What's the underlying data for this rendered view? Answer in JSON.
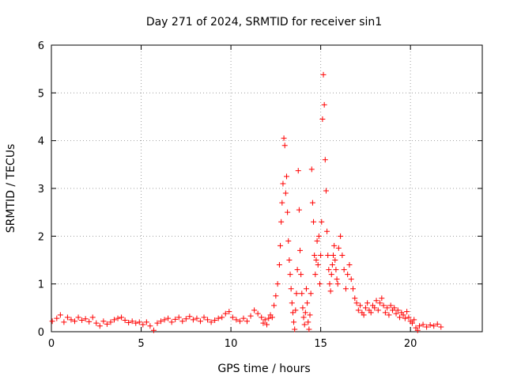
{
  "chart_data": {
    "type": "scatter",
    "title": "Day 271 of 2024, SRMTID for receiver sin1",
    "xlabel": "GPS time / hours",
    "ylabel": "SRMTID / TECUs",
    "xlim": [
      0,
      24
    ],
    "ylim": [
      0,
      6
    ],
    "xticks": [
      0,
      5,
      10,
      15,
      20
    ],
    "yticks": [
      0,
      1,
      2,
      3,
      4,
      5,
      6
    ],
    "xtick_labels": [
      "0",
      "5",
      "10",
      "15",
      "20"
    ],
    "ytick_labels": [
      "0",
      "1",
      "2",
      "3",
      "4",
      "5",
      "6"
    ],
    "grid": true,
    "marker": "+",
    "series": [
      {
        "name": "sin1",
        "color": "#ff0000",
        "points": [
          [
            0.05,
            0.22
          ],
          [
            0.3,
            0.28
          ],
          [
            0.5,
            0.35
          ],
          [
            0.7,
            0.2
          ],
          [
            0.9,
            0.3
          ],
          [
            1.1,
            0.25
          ],
          [
            1.3,
            0.22
          ],
          [
            1.5,
            0.3
          ],
          [
            1.7,
            0.24
          ],
          [
            1.9,
            0.27
          ],
          [
            2.1,
            0.21
          ],
          [
            2.3,
            0.3
          ],
          [
            2.5,
            0.18
          ],
          [
            2.7,
            0.12
          ],
          [
            2.9,
            0.22
          ],
          [
            3.1,
            0.16
          ],
          [
            3.3,
            0.2
          ],
          [
            3.5,
            0.25
          ],
          [
            3.7,
            0.28
          ],
          [
            3.9,
            0.3
          ],
          [
            4.1,
            0.24
          ],
          [
            4.3,
            0.19
          ],
          [
            4.5,
            0.22
          ],
          [
            4.7,
            0.18
          ],
          [
            4.9,
            0.2
          ],
          [
            5.1,
            0.15
          ],
          [
            5.3,
            0.2
          ],
          [
            5.5,
            0.12
          ],
          [
            5.7,
            0.03
          ],
          [
            5.9,
            0.18
          ],
          [
            6.1,
            0.22
          ],
          [
            6.3,
            0.25
          ],
          [
            6.5,
            0.28
          ],
          [
            6.7,
            0.2
          ],
          [
            6.9,
            0.26
          ],
          [
            7.1,
            0.3
          ],
          [
            7.3,
            0.22
          ],
          [
            7.5,
            0.27
          ],
          [
            7.7,
            0.32
          ],
          [
            7.9,
            0.25
          ],
          [
            8.1,
            0.28
          ],
          [
            8.3,
            0.22
          ],
          [
            8.5,
            0.3
          ],
          [
            8.7,
            0.25
          ],
          [
            8.9,
            0.2
          ],
          [
            9.1,
            0.24
          ],
          [
            9.3,
            0.28
          ],
          [
            9.5,
            0.3
          ],
          [
            9.7,
            0.38
          ],
          [
            9.9,
            0.42
          ],
          [
            10.1,
            0.3
          ],
          [
            10.3,
            0.25
          ],
          [
            10.5,
            0.22
          ],
          [
            10.7,
            0.28
          ],
          [
            10.9,
            0.22
          ],
          [
            11.1,
            0.33
          ],
          [
            11.3,
            0.45
          ],
          [
            11.5,
            0.38
          ],
          [
            11.7,
            0.3
          ],
          [
            11.8,
            0.18
          ],
          [
            11.9,
            0.25
          ],
          [
            12.0,
            0.15
          ],
          [
            12.1,
            0.28
          ],
          [
            12.2,
            0.35
          ],
          [
            12.3,
            0.3
          ],
          [
            12.4,
            0.55
          ],
          [
            12.5,
            0.75
          ],
          [
            12.6,
            1.0
          ],
          [
            12.7,
            1.4
          ],
          [
            12.75,
            1.8
          ],
          [
            12.8,
            2.3
          ],
          [
            12.85,
            2.7
          ],
          [
            12.9,
            3.1
          ],
          [
            12.95,
            4.05
          ],
          [
            13.0,
            3.9
          ],
          [
            13.05,
            2.9
          ],
          [
            13.1,
            3.25
          ],
          [
            13.15,
            2.5
          ],
          [
            13.2,
            1.9
          ],
          [
            13.25,
            1.5
          ],
          [
            13.3,
            1.2
          ],
          [
            13.35,
            0.9
          ],
          [
            13.4,
            0.6
          ],
          [
            13.45,
            0.4
          ],
          [
            13.5,
            0.2
          ],
          [
            13.55,
            0.05
          ],
          [
            13.6,
            0.45
          ],
          [
            13.65,
            0.8
          ],
          [
            13.7,
            1.3
          ],
          [
            13.75,
            3.37
          ],
          [
            13.8,
            2.55
          ],
          [
            13.85,
            1.7
          ],
          [
            13.9,
            1.2
          ],
          [
            13.95,
            0.8
          ],
          [
            14.0,
            0.5
          ],
          [
            14.05,
            0.3
          ],
          [
            14.1,
            0.15
          ],
          [
            14.15,
            0.4
          ],
          [
            14.2,
            0.9
          ],
          [
            14.25,
            0.6
          ],
          [
            14.3,
            0.2
          ],
          [
            14.35,
            0.05
          ],
          [
            14.4,
            0.35
          ],
          [
            14.45,
            0.8
          ],
          [
            14.5,
            3.4
          ],
          [
            14.55,
            2.7
          ],
          [
            14.6,
            2.3
          ],
          [
            14.65,
            1.6
          ],
          [
            14.7,
            1.2
          ],
          [
            14.75,
            1.5
          ],
          [
            14.8,
            1.9
          ],
          [
            14.85,
            1.4
          ],
          [
            14.9,
            2.0
          ],
          [
            14.95,
            1.0
          ],
          [
            15.0,
            1.6
          ],
          [
            15.05,
            2.3
          ],
          [
            15.1,
            4.45
          ],
          [
            15.15,
            5.38
          ],
          [
            15.2,
            4.75
          ],
          [
            15.25,
            3.6
          ],
          [
            15.3,
            2.95
          ],
          [
            15.35,
            2.1
          ],
          [
            15.4,
            1.6
          ],
          [
            15.45,
            1.3
          ],
          [
            15.5,
            1.0
          ],
          [
            15.55,
            0.85
          ],
          [
            15.6,
            1.2
          ],
          [
            15.65,
            1.4
          ],
          [
            15.7,
            1.6
          ],
          [
            15.75,
            1.8
          ],
          [
            15.8,
            1.5
          ],
          [
            15.85,
            1.3
          ],
          [
            15.9,
            1.1
          ],
          [
            15.95,
            1.0
          ],
          [
            16.0,
            1.75
          ],
          [
            16.1,
            2.0
          ],
          [
            16.2,
            1.6
          ],
          [
            16.3,
            1.3
          ],
          [
            16.4,
            0.9
          ],
          [
            16.5,
            1.2
          ],
          [
            16.6,
            1.4
          ],
          [
            16.7,
            1.1
          ],
          [
            16.8,
            0.9
          ],
          [
            16.9,
            0.7
          ],
          [
            17.0,
            0.6
          ],
          [
            17.1,
            0.45
          ],
          [
            17.2,
            0.55
          ],
          [
            17.3,
            0.4
          ],
          [
            17.4,
            0.35
          ],
          [
            17.5,
            0.5
          ],
          [
            17.6,
            0.6
          ],
          [
            17.7,
            0.45
          ],
          [
            17.8,
            0.4
          ],
          [
            17.9,
            0.55
          ],
          [
            18.0,
            0.5
          ],
          [
            18.1,
            0.65
          ],
          [
            18.2,
            0.45
          ],
          [
            18.3,
            0.6
          ],
          [
            18.4,
            0.7
          ],
          [
            18.5,
            0.55
          ],
          [
            18.6,
            0.4
          ],
          [
            18.7,
            0.5
          ],
          [
            18.8,
            0.35
          ],
          [
            18.9,
            0.55
          ],
          [
            19.0,
            0.45
          ],
          [
            19.1,
            0.5
          ],
          [
            19.2,
            0.38
          ],
          [
            19.3,
            0.45
          ],
          [
            19.4,
            0.3
          ],
          [
            19.5,
            0.4
          ],
          [
            19.6,
            0.35
          ],
          [
            19.7,
            0.28
          ],
          [
            19.8,
            0.42
          ],
          [
            19.9,
            0.3
          ],
          [
            20.0,
            0.22
          ],
          [
            20.1,
            0.18
          ],
          [
            20.2,
            0.25
          ],
          [
            20.3,
            0.08
          ],
          [
            20.4,
            0.03
          ],
          [
            20.5,
            0.12
          ],
          [
            20.7,
            0.15
          ],
          [
            20.9,
            0.1
          ],
          [
            21.1,
            0.14
          ],
          [
            21.3,
            0.12
          ],
          [
            21.5,
            0.16
          ],
          [
            21.7,
            0.1
          ]
        ]
      }
    ]
  }
}
